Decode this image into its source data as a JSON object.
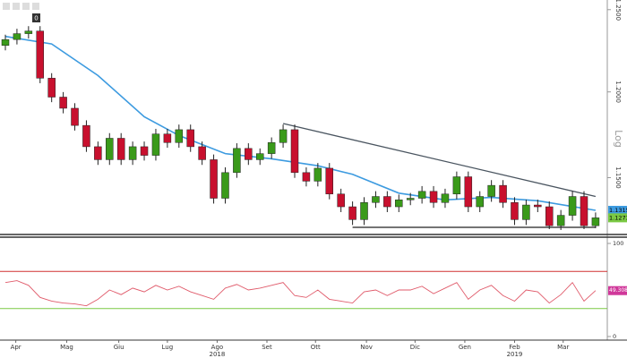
{
  "controls": {
    "badge": "0"
  },
  "chart_data": {
    "type": "candlestick",
    "log_scale": true,
    "scale_label": "Log",
    "ylim": [
      1.12,
      1.256
    ],
    "yticks": [
      {
        "value": 1.15,
        "label": "1.1500"
      },
      {
        "value": 1.2,
        "label": "1.2000"
      },
      {
        "value": 1.25,
        "label": "1.2500"
      }
    ],
    "up_color": "#3a9a1a",
    "down_color": "#c8102e",
    "open": [
      1.228,
      1.2316,
      1.2352,
      1.2368,
      1.2082,
      1.1969,
      1.1903,
      1.1802,
      1.1678,
      1.1603,
      1.1727,
      1.1603,
      1.1678,
      1.1628,
      1.1752,
      1.1702,
      1.1777,
      1.1678,
      1.1603,
      1.1383,
      1.1529,
      1.1668,
      1.1603,
      1.1638,
      1.1702,
      1.1777,
      1.1529,
      1.148,
      1.1554,
      1.1407,
      1.1335,
      1.1263,
      1.1359,
      1.1393,
      1.1335,
      1.1374,
      1.1383,
      1.1422,
      1.1359,
      1.1407,
      1.1505,
      1.1335,
      1.1393,
      1.1456,
      1.1359,
      1.1263,
      1.1345,
      1.1335,
      1.1229,
      1.1287,
      1.1393,
      1.1229
    ],
    "high": [
      1.2346,
      1.2382,
      1.2398,
      1.2398,
      1.2112,
      1.1999,
      1.1933,
      1.1832,
      1.1708,
      1.1757,
      1.1757,
      1.1708,
      1.1708,
      1.1782,
      1.1782,
      1.1807,
      1.1807,
      1.1708,
      1.1633,
      1.1559,
      1.1698,
      1.1698,
      1.1668,
      1.1732,
      1.1807,
      1.1807,
      1.1559,
      1.1584,
      1.1584,
      1.1437,
      1.1365,
      1.1389,
      1.1423,
      1.1423,
      1.1404,
      1.1413,
      1.1452,
      1.1452,
      1.1437,
      1.1535,
      1.1535,
      1.1423,
      1.1486,
      1.1486,
      1.1389,
      1.1375,
      1.1375,
      1.1365,
      1.1317,
      1.1423,
      1.1423,
      1.1303
    ],
    "low": [
      1.225,
      1.2286,
      1.2322,
      1.2052,
      1.1939,
      1.1873,
      1.1772,
      1.1648,
      1.1573,
      1.1573,
      1.1573,
      1.1573,
      1.1598,
      1.1598,
      1.1672,
      1.1672,
      1.1648,
      1.1573,
      1.1353,
      1.1353,
      1.1499,
      1.1573,
      1.1573,
      1.1608,
      1.1672,
      1.1499,
      1.145,
      1.145,
      1.1377,
      1.1305,
      1.1233,
      1.1233,
      1.1329,
      1.1305,
      1.1305,
      1.1344,
      1.1353,
      1.1329,
      1.1329,
      1.1377,
      1.1305,
      1.1305,
      1.1363,
      1.1329,
      1.1233,
      1.1233,
      1.1305,
      1.121,
      1.1205,
      1.1257,
      1.121,
      1.1215
    ],
    "close": [
      1.2316,
      1.2352,
      1.2368,
      1.2082,
      1.1969,
      1.1903,
      1.1802,
      1.1678,
      1.1603,
      1.1727,
      1.1603,
      1.1678,
      1.1628,
      1.1752,
      1.1702,
      1.1777,
      1.1678,
      1.1603,
      1.1383,
      1.1529,
      1.1668,
      1.1603,
      1.1638,
      1.1702,
      1.1777,
      1.1529,
      1.148,
      1.1554,
      1.1407,
      1.1335,
      1.1263,
      1.1359,
      1.1393,
      1.1335,
      1.1374,
      1.1383,
      1.1422,
      1.1359,
      1.1407,
      1.1505,
      1.1335,
      1.1393,
      1.1456,
      1.1359,
      1.1263,
      1.1345,
      1.1335,
      1.1229,
      1.1287,
      1.1393,
      1.1229,
      1.1273
    ],
    "last_color": "#7ac943",
    "moving_average": {
      "color": "#3d9be0",
      "x": [
        0,
        4,
        8,
        12,
        15,
        19,
        23,
        27,
        30,
        34,
        38,
        42,
        46,
        51
      ],
      "values": [
        1.2335,
        1.2289,
        1.2098,
        1.1853,
        1.1743,
        1.1638,
        1.1608,
        1.1568,
        1.1519,
        1.1412,
        1.1374,
        1.1388,
        1.1369,
        1.1315
      ]
    },
    "trendlines": [
      {
        "color": "#4a5560",
        "from": [
          24,
          1.1813
        ],
        "to": [
          51,
          1.1393
        ]
      },
      {
        "color": "#222222",
        "from": [
          30,
          1.122
        ],
        "to": [
          51,
          1.122
        ]
      }
    ],
    "xticks": [
      {
        "value": 0.9,
        "label": "Apr"
      },
      {
        "value": 5.3,
        "label": "Mag"
      },
      {
        "value": 9.8,
        "label": "Giu"
      },
      {
        "value": 14,
        "label": "Lug"
      },
      {
        "value": 18.3,
        "label": "Ago"
      },
      {
        "value": 22.6,
        "label": "Set"
      },
      {
        "value": 26.8,
        "label": "Ott"
      },
      {
        "value": 31.2,
        "label": "Nov"
      },
      {
        "value": 35.4,
        "label": "Dic"
      },
      {
        "value": 39.7,
        "label": "Gen"
      },
      {
        "value": 44,
        "label": "Feb"
      },
      {
        "value": 48.2,
        "label": "Mar"
      }
    ],
    "years": [
      {
        "value": 18.3,
        "label": "2018"
      },
      {
        "value": 44,
        "label": "2019"
      }
    ],
    "rsi": {
      "color": "#e05a6a",
      "ylim": [
        0,
        100
      ],
      "yticks": [
        0,
        100
      ],
      "levels": [
        {
          "value": 70,
          "color": "#d03030"
        },
        {
          "value": 30,
          "color": "#7ac943"
        }
      ],
      "label_color": "#d0389a",
      "values": [
        58,
        60,
        55,
        42,
        38,
        36,
        35,
        33,
        40,
        50,
        45,
        52,
        48,
        55,
        50,
        54,
        48,
        44,
        40,
        52,
        56,
        50,
        52,
        55,
        58,
        44,
        42,
        50,
        40,
        38,
        36,
        48,
        50,
        44,
        50,
        50,
        54,
        46,
        52,
        58,
        40,
        50,
        55,
        44,
        38,
        50,
        48,
        36,
        45,
        58,
        38,
        49.3082
      ]
    }
  }
}
